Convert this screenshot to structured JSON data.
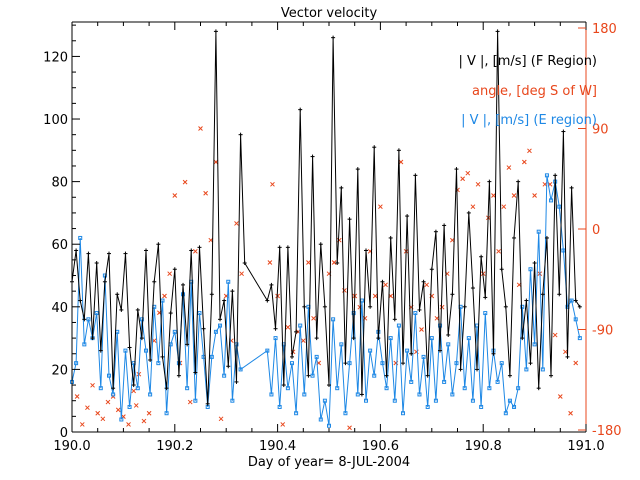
{
  "chart_data": {
    "type": "line",
    "title": "Vector velocity",
    "xlabel": "Day of year= 8-JUL-2004",
    "ylabel": "",
    "xlim": [
      190.0,
      191.0
    ],
    "ylim": [
      0,
      131
    ],
    "y2lim": [
      -180,
      180
    ],
    "grid": false,
    "legend_position": "top-right",
    "x_ticks": [
      "190.0",
      "190.2",
      "190.4",
      "190.6",
      "190.8",
      "191.0"
    ],
    "x_tick_values": [
      190.0,
      190.2,
      190.4,
      190.6,
      190.8,
      191.0
    ],
    "y_ticks": [
      "0",
      "20",
      "40",
      "60",
      "80",
      "100",
      "120"
    ],
    "y_tick_values": [
      0,
      20,
      40,
      60,
      80,
      100,
      120
    ],
    "y2_ticks": [
      "-180",
      "-90",
      "0",
      "90",
      "180"
    ],
    "y2_tick_values": [
      -180,
      -90,
      0,
      90,
      180
    ],
    "colors": {
      "f_region": "#000000",
      "angle": "#e8471c",
      "e_region": "#1e88e5",
      "axis": "#000000",
      "axis2": "#e8471c"
    },
    "series": [
      {
        "name": "| V |, [m/s] (F Region)",
        "style": "line+plus",
        "color": "#000000",
        "x": [
          190.0,
          190.008,
          190.016,
          190.024,
          190.032,
          190.04,
          190.048,
          190.056,
          190.064,
          190.072,
          190.08,
          190.088,
          190.096,
          190.104,
          190.112,
          190.12,
          190.128,
          190.136,
          190.144,
          190.152,
          190.16,
          190.168,
          190.176,
          190.184,
          190.192,
          190.2,
          190.208,
          190.216,
          190.224,
          190.232,
          190.24,
          190.248,
          190.256,
          190.264,
          190.272,
          190.28,
          190.288,
          190.296,
          190.304,
          190.312,
          190.32,
          190.328,
          190.336,
          190.38,
          190.388,
          190.396,
          190.404,
          190.412,
          190.42,
          190.428,
          190.436,
          190.444,
          190.452,
          190.46,
          190.468,
          190.476,
          190.484,
          190.492,
          190.5,
          190.508,
          190.516,
          190.524,
          190.532,
          190.54,
          190.548,
          190.556,
          190.564,
          190.572,
          190.58,
          190.588,
          190.596,
          190.604,
          190.612,
          190.62,
          190.628,
          190.636,
          190.644,
          190.652,
          190.66,
          190.668,
          190.676,
          190.684,
          190.692,
          190.7,
          190.708,
          190.716,
          190.724,
          190.732,
          190.74,
          190.748,
          190.756,
          190.764,
          190.772,
          190.78,
          190.788,
          190.796,
          190.804,
          190.812,
          190.82,
          190.828,
          190.836,
          190.844,
          190.852,
          190.86,
          190.868,
          190.876,
          190.884,
          190.892,
          190.9,
          190.908,
          190.916,
          190.924,
          190.932,
          190.94,
          190.948,
          190.956,
          190.964,
          190.972,
          190.98,
          190.988
        ],
        "y": [
          48,
          58,
          42,
          36,
          57,
          30,
          54,
          26,
          48,
          57,
          14,
          44,
          39,
          57,
          27,
          15,
          39,
          30,
          58,
          23,
          48,
          60,
          24,
          14,
          38,
          52,
          18,
          47,
          28,
          58,
          19,
          59,
          33,
          9,
          44,
          128,
          36,
          42,
          21,
          45,
          16,
          95,
          54,
          42,
          47,
          33,
          59,
          15,
          59,
          24,
          32,
          103,
          40,
          18,
          88,
          30,
          60,
          40,
          15,
          126,
          54,
          78,
          22,
          68,
          30,
          84,
          12,
          58,
          40,
          91,
          30,
          48,
          18,
          62,
          36,
          90,
          22,
          69,
          25,
          82,
          39,
          48,
          18,
          52,
          64,
          26,
          66,
          31,
          44,
          84,
          20,
          40,
          70,
          46,
          20,
          56,
          43,
          80,
          25,
          128,
          52,
          40,
          18,
          62,
          80,
          30,
          42,
          22,
          54,
          14,
          44,
          62,
          18,
          82,
          44,
          96,
          24,
          78,
          42,
          40
        ],
        "note": "approximate values traced from the dense trace"
      },
      {
        "name": "angle, [deg S of W]",
        "style": "scatter-x",
        "color": "#e8471c",
        "axis": "right",
        "x": [
          190.01,
          190.02,
          190.03,
          190.04,
          190.05,
          190.06,
          190.07,
          190.08,
          190.09,
          190.1,
          190.11,
          190.12,
          190.125,
          190.13,
          190.14,
          190.15,
          190.16,
          190.17,
          190.18,
          190.19,
          190.2,
          190.21,
          190.22,
          190.23,
          190.24,
          190.25,
          190.26,
          190.27,
          190.28,
          190.29,
          190.3,
          190.31,
          190.32,
          190.33,
          190.385,
          190.39,
          190.4,
          190.41,
          190.42,
          190.43,
          190.44,
          190.45,
          190.46,
          190.47,
          190.48,
          190.5,
          190.51,
          190.52,
          190.53,
          190.54,
          190.55,
          190.56,
          190.57,
          190.58,
          190.59,
          190.6,
          190.61,
          190.62,
          190.63,
          190.64,
          190.65,
          190.66,
          190.67,
          190.68,
          190.69,
          190.7,
          190.71,
          190.72,
          190.73,
          190.74,
          190.75,
          190.76,
          190.77,
          190.78,
          190.79,
          190.8,
          190.81,
          190.82,
          190.83,
          190.84,
          190.85,
          190.86,
          190.87,
          190.88,
          190.89,
          190.9,
          190.91,
          190.92,
          190.93,
          190.94,
          190.95,
          190.96,
          190.97,
          190.98
        ],
        "y": [
          -150,
          -175,
          -160,
          -140,
          -165,
          -170,
          -155,
          -150,
          -162,
          -168,
          -175,
          -145,
          -158,
          -130,
          -172,
          -165,
          -100,
          -75,
          -60,
          -40,
          30,
          -120,
          42,
          -155,
          -20,
          90,
          32,
          -10,
          60,
          -170,
          -60,
          -100,
          5,
          -40,
          -30,
          40,
          -60,
          -175,
          -88,
          -110,
          -92,
          -100,
          -30,
          -80,
          -120,
          -40,
          -30,
          -10,
          -55,
          -178,
          -60,
          -70,
          -80,
          -20,
          -60,
          20,
          -50,
          -60,
          -120,
          60,
          -20,
          -70,
          -110,
          -90,
          -50,
          -60,
          -80,
          -70,
          -40,
          -10,
          35,
          45,
          50,
          20,
          40,
          -40,
          10,
          30,
          -20,
          20,
          55,
          30,
          -50,
          60,
          70,
          30,
          -40,
          40,
          40,
          -95,
          -150,
          -110,
          -165,
          -120
        ],
        "note": "approximate sampled points"
      },
      {
        "name": "| V |, [m/s] (E region)",
        "style": "line+square",
        "color": "#1e88e5",
        "x": [
          190.0,
          190.008,
          190.016,
          190.024,
          190.032,
          190.04,
          190.048,
          190.056,
          190.064,
          190.072,
          190.08,
          190.088,
          190.096,
          190.104,
          190.112,
          190.12,
          190.128,
          190.136,
          190.144,
          190.152,
          190.16,
          190.168,
          190.176,
          190.184,
          190.192,
          190.2,
          190.208,
          190.216,
          190.224,
          190.232,
          190.24,
          190.248,
          190.256,
          190.264,
          190.272,
          190.28,
          190.288,
          190.296,
          190.304,
          190.312,
          190.32,
          190.328,
          190.38,
          190.388,
          190.396,
          190.404,
          190.412,
          190.42,
          190.428,
          190.436,
          190.444,
          190.452,
          190.46,
          190.468,
          190.476,
          190.484,
          190.492,
          190.5,
          190.508,
          190.516,
          190.524,
          190.532,
          190.54,
          190.548,
          190.556,
          190.564,
          190.572,
          190.58,
          190.588,
          190.596,
          190.604,
          190.612,
          190.62,
          190.628,
          190.636,
          190.644,
          190.652,
          190.66,
          190.668,
          190.676,
          190.684,
          190.692,
          190.7,
          190.708,
          190.716,
          190.724,
          190.732,
          190.74,
          190.748,
          190.756,
          190.764,
          190.772,
          190.78,
          190.788,
          190.796,
          190.804,
          190.812,
          190.82,
          190.828,
          190.836,
          190.844,
          190.852,
          190.86,
          190.868,
          190.876,
          190.884,
          190.892,
          190.9,
          190.908,
          190.916,
          190.924,
          190.932,
          190.94,
          190.948,
          190.956,
          190.964,
          190.972,
          190.98,
          190.988
        ],
        "y": [
          16,
          22,
          62,
          28,
          36,
          30,
          38,
          14,
          50,
          18,
          12,
          32,
          4,
          26,
          8,
          22,
          14,
          36,
          26,
          12,
          40,
          22,
          42,
          6,
          28,
          32,
          22,
          44,
          14,
          48,
          10,
          38,
          24,
          8,
          24,
          32,
          34,
          18,
          48,
          10,
          28,
          20,
          26,
          12,
          30,
          8,
          28,
          14,
          22,
          6,
          34,
          12,
          40,
          18,
          24,
          4,
          10,
          2,
          36,
          14,
          28,
          6,
          22,
          38,
          12,
          42,
          10,
          26,
          18,
          32,
          22,
          14,
          30,
          10,
          34,
          6,
          26,
          16,
          38,
          12,
          24,
          8,
          30,
          10,
          34,
          16,
          28,
          12,
          22,
          40,
          14,
          30,
          10,
          34,
          8,
          38,
          14,
          26,
          16,
          22,
          6,
          10,
          8,
          14,
          40,
          20,
          52,
          28,
          64,
          20,
          82,
          74,
          80,
          72,
          58,
          40,
          42,
          36,
          30
        ],
        "note": "approximate values traced from the dense trace"
      }
    ]
  }
}
